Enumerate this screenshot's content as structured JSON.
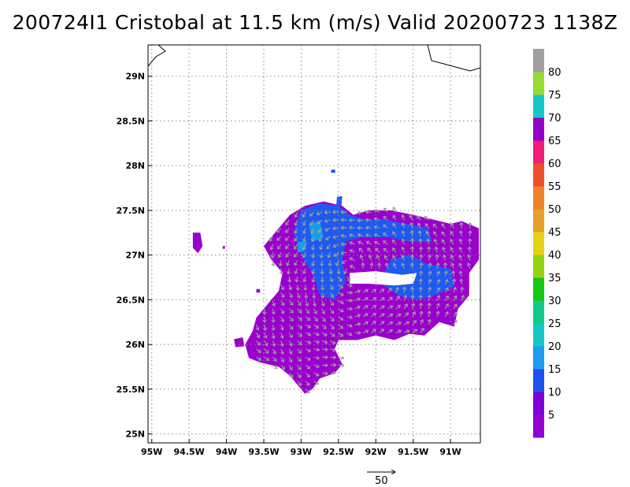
{
  "title": "200724I1 Cristobal at 11.5 km (m/s) Valid 20200723 1138Z",
  "map": {
    "lon_range": [
      -95.05,
      -90.6
    ],
    "lat_range": [
      24.9,
      29.35
    ],
    "x_ticks": [
      {
        "value": -95.0,
        "label": "95W"
      },
      {
        "value": -94.5,
        "label": "94.5W"
      },
      {
        "value": -94.0,
        "label": "94W"
      },
      {
        "value": -93.5,
        "label": "93.5W"
      },
      {
        "value": -93.0,
        "label": "93W"
      },
      {
        "value": -92.5,
        "label": "92.5W"
      },
      {
        "value": -92.0,
        "label": "92W"
      },
      {
        "value": -91.5,
        "label": "91.5W"
      },
      {
        "value": -91.0,
        "label": "91W"
      }
    ],
    "y_ticks": [
      {
        "value": 25.0,
        "label": "25N"
      },
      {
        "value": 25.5,
        "label": "25.5N"
      },
      {
        "value": 26.0,
        "label": "26N"
      },
      {
        "value": 26.5,
        "label": "26.5N"
      },
      {
        "value": 27.0,
        "label": "27N"
      },
      {
        "value": 27.5,
        "label": "27.5N"
      },
      {
        "value": 28.0,
        "label": "28N"
      },
      {
        "value": 28.5,
        "label": "28.5N"
      },
      {
        "value": 29.0,
        "label": "29N"
      }
    ],
    "grid": "dotted",
    "field_color_main": "#9900cc",
    "field_color_high": "#1e5af0",
    "field_color_peak": "#14a0e6",
    "arrow_color": "#a0a0a0",
    "coastline_color": "#000000"
  },
  "colorbar": {
    "segments": [
      {
        "color": "#9400d3"
      },
      {
        "color": "#7f00d8"
      },
      {
        "color": "#1e50f0"
      },
      {
        "color": "#1e9cf0"
      },
      {
        "color": "#14c8c8"
      },
      {
        "color": "#14c88c"
      },
      {
        "color": "#14c814"
      },
      {
        "color": "#96d214"
      },
      {
        "color": "#e6d214"
      },
      {
        "color": "#e6a028"
      },
      {
        "color": "#f08228"
      },
      {
        "color": "#f05028"
      },
      {
        "color": "#f01e78"
      },
      {
        "color": "#9400c8"
      },
      {
        "color": "#14c8c8"
      },
      {
        "color": "#96dc32"
      },
      {
        "color": "#a0a0a0"
      }
    ],
    "labels": [
      "5",
      "10",
      "15",
      "20",
      "25",
      "30",
      "35",
      "40",
      "45",
      "50",
      "55",
      "60",
      "65",
      "70",
      "75",
      "80"
    ]
  },
  "reference_vector": {
    "label": "50"
  }
}
